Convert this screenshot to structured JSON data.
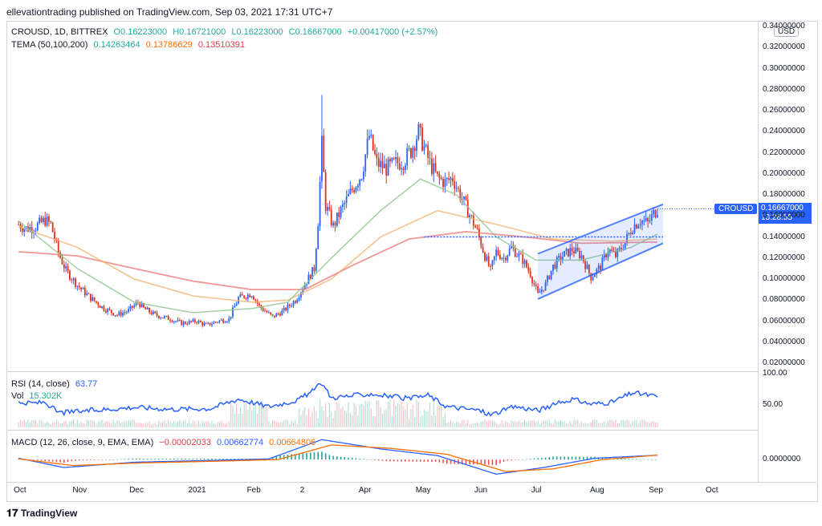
{
  "header": {
    "published": "ellevationtrading published on TradingView.com, Sep 03, 2021 17:31 UTC+7"
  },
  "legend": {
    "symbol": "CROUSD, 1D, BITTREX",
    "open": "O0.16223000",
    "high": "H0.16721000",
    "low": "L0.16223000",
    "close": "C0.16667000",
    "change": "+0.00417000 (+2.57%)",
    "tema_label": "TEMA (50,100,200)",
    "tema_values": [
      "0.14263464",
      "0.13786629",
      "0.13510391"
    ],
    "rsi_label": "RSI (14, close)",
    "rsi_value": "63.77",
    "vol_label": "Vol",
    "vol_value": "15.302K",
    "macd_label": "MACD (12, 26, close, 9, EMA, EMA)",
    "macd_values": [
      "−0.00002033",
      "0.00662774",
      "0.00664806"
    ]
  },
  "price_axis": {
    "currency": "USD",
    "ticks": [
      "0.34000000",
      "0.32000000",
      "0.30000000",
      "0.28000000",
      "0.26000000",
      "0.24000000",
      "0.22000000",
      "0.20000000",
      "0.18000000",
      "0.16000000",
      "0.14000000",
      "0.12000000",
      "0.10000000",
      "0.08000000",
      "0.06000000",
      "0.04000000",
      "0.02000000"
    ],
    "last_label": "CROUSD",
    "last_price": "0.16667000",
    "countdown": "13:28:55"
  },
  "rsi_axis": {
    "ticks": [
      "100.00",
      "50.00"
    ]
  },
  "macd_axis": {
    "ticks": [
      "0.0000000"
    ]
  },
  "time_axis": {
    "labels": [
      "Oct",
      "Nov",
      "Dec",
      "2021",
      "Feb",
      "2",
      "Apr",
      "May",
      "Jun",
      "Jul",
      "Aug",
      "Sep",
      "Oct"
    ]
  },
  "footer": {
    "logo": "TradingView"
  },
  "colors": {
    "up": "#2962ff",
    "down": "#e0301e",
    "tema50": "#8bc48a",
    "tema100": "#f2b06b",
    "tema200": "#ee7d79",
    "channel": "#2962ff",
    "rsi": "#2962ff",
    "macd": "#2962ff",
    "signal": "#ff6d00",
    "text_green": "#22ab94",
    "text_orange": "#ff6d00",
    "text_red": "#f23645"
  },
  "chart_data": {
    "type": "candlestick",
    "symbol": "CROUSD",
    "timeframe": "1D",
    "exchange": "BITTREX",
    "ylim": [
      0.01,
      0.345
    ],
    "support_level": 0.14,
    "close_path": [
      [
        "2020-10-01",
        0.152
      ],
      [
        "2020-10-05",
        0.148
      ],
      [
        "2020-10-10",
        0.15
      ],
      [
        "2020-10-15",
        0.156
      ],
      [
        "2020-10-18",
        0.152
      ],
      [
        "2020-10-22",
        0.125
      ],
      [
        "2020-10-26",
        0.108
      ],
      [
        "2020-11-01",
        0.094
      ],
      [
        "2020-11-08",
        0.082
      ],
      [
        "2020-11-15",
        0.072
      ],
      [
        "2020-11-22",
        0.066
      ],
      [
        "2020-11-28",
        0.07
      ],
      [
        "2020-12-03",
        0.078
      ],
      [
        "2020-12-06",
        0.072
      ],
      [
        "2020-12-12",
        0.066
      ],
      [
        "2020-12-20",
        0.062
      ],
      [
        "2020-12-26",
        0.058
      ],
      [
        "2021-01-03",
        0.06
      ],
      [
        "2021-01-08",
        0.056
      ],
      [
        "2021-01-14",
        0.06
      ],
      [
        "2021-01-20",
        0.062
      ],
      [
        "2021-01-25",
        0.082
      ],
      [
        "2021-02-01",
        0.086
      ],
      [
        "2021-02-05",
        0.074
      ],
      [
        "2021-02-12",
        0.064
      ],
      [
        "2021-02-18",
        0.07
      ],
      [
        "2021-02-24",
        0.08
      ],
      [
        "2021-03-01",
        0.095
      ],
      [
        "2021-03-06",
        0.11
      ],
      [
        "2021-03-08",
        0.155
      ],
      [
        "2021-03-10",
        0.228
      ],
      [
        "2021-03-12",
        0.17
      ],
      [
        "2021-03-16",
        0.15
      ],
      [
        "2021-03-20",
        0.165
      ],
      [
        "2021-03-26",
        0.185
      ],
      [
        "2021-03-31",
        0.2
      ],
      [
        "2021-04-04",
        0.236
      ],
      [
        "2021-04-08",
        0.21
      ],
      [
        "2021-04-13",
        0.205
      ],
      [
        "2021-04-18",
        0.21
      ],
      [
        "2021-04-22",
        0.212
      ],
      [
        "2021-04-26",
        0.222
      ],
      [
        "2021-04-30",
        0.24
      ],
      [
        "2021-05-03",
        0.225
      ],
      [
        "2021-05-06",
        0.21
      ],
      [
        "2021-05-10",
        0.196
      ],
      [
        "2021-05-14",
        0.192
      ],
      [
        "2021-05-18",
        0.196
      ],
      [
        "2021-05-22",
        0.18
      ],
      [
        "2021-05-26",
        0.165
      ],
      [
        "2021-05-31",
        0.145
      ],
      [
        "2021-06-04",
        0.122
      ],
      [
        "2021-06-07",
        0.108
      ],
      [
        "2021-06-10",
        0.126
      ],
      [
        "2021-06-14",
        0.12
      ],
      [
        "2021-06-18",
        0.13
      ],
      [
        "2021-06-24",
        0.118
      ],
      [
        "2021-06-28",
        0.105
      ],
      [
        "2021-07-02",
        0.085
      ],
      [
        "2021-07-06",
        0.095
      ],
      [
        "2021-07-10",
        0.112
      ],
      [
        "2021-07-15",
        0.122
      ],
      [
        "2021-07-20",
        0.128
      ],
      [
        "2021-07-25",
        0.122
      ],
      [
        "2021-07-30",
        0.102
      ],
      [
        "2021-08-04",
        0.112
      ],
      [
        "2021-08-08",
        0.128
      ],
      [
        "2021-08-12",
        0.122
      ],
      [
        "2021-08-16",
        0.132
      ],
      [
        "2021-08-21",
        0.15
      ],
      [
        "2021-08-25",
        0.156
      ],
      [
        "2021-08-29",
        0.153
      ],
      [
        "2021-09-01",
        0.162
      ],
      [
        "2021-09-03",
        0.16667
      ]
    ],
    "spike_high": [
      "2021-03-10",
      0.275
    ],
    "channel_upper": [
      [
        "2021-07-02",
        0.124
      ],
      [
        "2021-09-06",
        0.171
      ]
    ],
    "channel_lower": [
      [
        "2021-07-02",
        0.081
      ],
      [
        "2021-09-06",
        0.134
      ]
    ],
    "tema": {
      "tema50": [
        [
          "2020-10-01",
          0.155
        ],
        [
          "2020-11-01",
          0.11
        ],
        [
          "2020-12-01",
          0.078
        ],
        [
          "2021-01-01",
          0.068
        ],
        [
          "2021-02-01",
          0.072
        ],
        [
          "2021-02-20",
          0.078
        ],
        [
          "2021-03-15",
          0.12
        ],
        [
          "2021-04-10",
          0.165
        ],
        [
          "2021-05-01",
          0.195
        ],
        [
          "2021-05-20",
          0.18
        ],
        [
          "2021-06-10",
          0.14
        ],
        [
          "2021-07-01",
          0.118
        ],
        [
          "2021-07-25",
          0.118
        ],
        [
          "2021-08-20",
          0.13
        ],
        [
          "2021-09-03",
          0.1426
        ]
      ],
      "tema100": [
        [
          "2020-10-01",
          0.15
        ],
        [
          "2020-11-01",
          0.13
        ],
        [
          "2020-12-01",
          0.1
        ],
        [
          "2021-01-01",
          0.084
        ],
        [
          "2021-02-01",
          0.078
        ],
        [
          "2021-02-20",
          0.08
        ],
        [
          "2021-03-15",
          0.1
        ],
        [
          "2021-04-10",
          0.14
        ],
        [
          "2021-05-10",
          0.165
        ],
        [
          "2021-06-10",
          0.152
        ],
        [
          "2021-07-10",
          0.138
        ],
        [
          "2021-08-10",
          0.136
        ],
        [
          "2021-09-03",
          0.1379
        ]
      ],
      "tema200": [
        [
          "2020-10-01",
          0.126
        ],
        [
          "2020-11-01",
          0.122
        ],
        [
          "2020-12-01",
          0.11
        ],
        [
          "2021-01-01",
          0.098
        ],
        [
          "2021-02-01",
          0.09
        ],
        [
          "2021-03-01",
          0.09
        ],
        [
          "2021-03-25",
          0.112
        ],
        [
          "2021-04-25",
          0.138
        ],
        [
          "2021-05-25",
          0.145
        ],
        [
          "2021-06-25",
          0.14
        ],
        [
          "2021-07-25",
          0.134
        ],
        [
          "2021-09-03",
          0.1351
        ]
      ]
    },
    "rsi": [
      [
        "2020-10-01",
        52
      ],
      [
        "2020-10-15",
        55
      ],
      [
        "2020-10-22",
        38
      ],
      [
        "2020-11-10",
        42
      ],
      [
        "2020-12-01",
        47
      ],
      [
        "2020-12-20",
        44
      ],
      [
        "2021-01-10",
        45
      ],
      [
        "2021-01-25",
        60
      ],
      [
        "2021-02-10",
        48
      ],
      [
        "2021-02-25",
        58
      ],
      [
        "2021-03-05",
        72
      ],
      [
        "2021-03-10",
        85
      ],
      [
        "2021-03-15",
        62
      ],
      [
        "2021-04-05",
        68
      ],
      [
        "2021-04-25",
        60
      ],
      [
        "2021-05-05",
        66
      ],
      [
        "2021-05-15",
        48
      ],
      [
        "2021-06-01",
        42
      ],
      [
        "2021-06-07",
        35
      ],
      [
        "2021-06-20",
        48
      ],
      [
        "2021-07-02",
        42
      ],
      [
        "2021-07-20",
        60
      ],
      [
        "2021-07-30",
        52
      ],
      [
        "2021-08-10",
        55
      ],
      [
        "2021-08-21",
        70
      ],
      [
        "2021-09-03",
        63.77
      ]
    ],
    "volume_last": "15.302K",
    "macd": {
      "macd_line": [
        [
          "2020-10-01",
          0.002
        ],
        [
          "2020-10-25",
          -0.012
        ],
        [
          "2020-12-01",
          -0.004
        ],
        [
          "2021-01-15",
          -0.001
        ],
        [
          "2021-02-10",
          0.001
        ],
        [
          "2021-03-10",
          0.03
        ],
        [
          "2021-04-10",
          0.016
        ],
        [
          "2021-05-10",
          0.006
        ],
        [
          "2021-06-10",
          -0.022
        ],
        [
          "2021-07-05",
          -0.012
        ],
        [
          "2021-08-01",
          0.002
        ],
        [
          "2021-09-03",
          0.0066
        ]
      ],
      "signal_line": [
        [
          "2020-10-01",
          0.001
        ],
        [
          "2020-10-30",
          -0.009
        ],
        [
          "2020-12-05",
          -0.005
        ],
        [
          "2021-01-20",
          -0.002
        ],
        [
          "2021-02-15",
          0.0
        ],
        [
          "2021-03-15",
          0.022
        ],
        [
          "2021-04-15",
          0.017
        ],
        [
          "2021-05-15",
          0.008
        ],
        [
          "2021-06-15",
          -0.018
        ],
        [
          "2021-07-10",
          -0.014
        ],
        [
          "2021-08-05",
          0.0
        ],
        [
          "2021-09-03",
          0.0066
        ]
      ],
      "ylim": [
        -0.03,
        0.04
      ]
    },
    "xrange": [
      "2020-09-25",
      "2021-10-26"
    ]
  }
}
